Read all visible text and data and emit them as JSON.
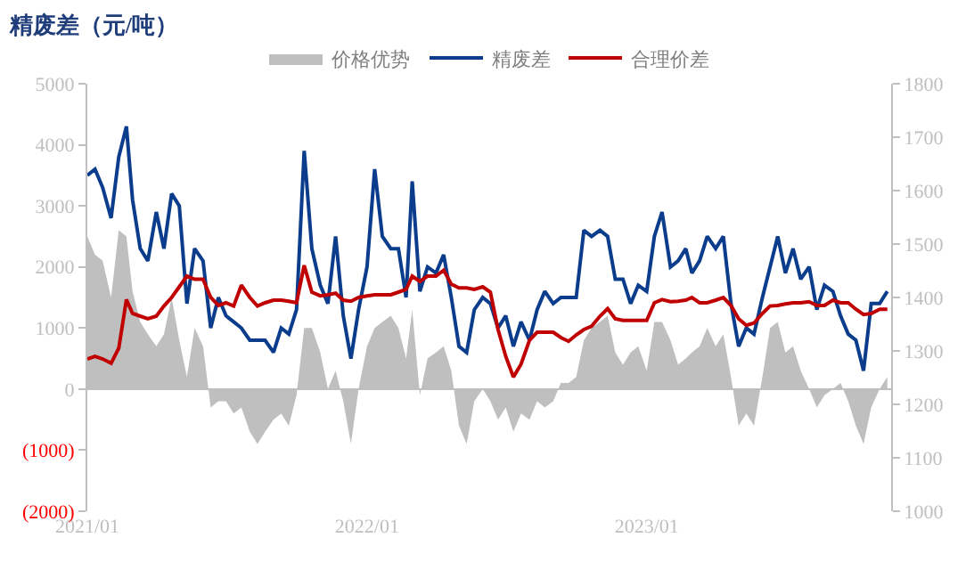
{
  "chart_data": {
    "type": "line",
    "title": "精废差（元/吨）",
    "x": [
      "2021-01-01",
      "2021-01-11",
      "2021-01-21",
      "2021-02-01",
      "2021-02-11",
      "2021-02-21",
      "2021-03-01",
      "2021-03-11",
      "2021-03-21",
      "2021-04-01",
      "2021-04-11",
      "2021-04-21",
      "2021-05-01",
      "2021-05-11",
      "2021-05-21",
      "2021-06-01",
      "2021-06-11",
      "2021-06-21",
      "2021-07-01",
      "2021-07-11",
      "2021-07-21",
      "2021-08-01",
      "2021-08-11",
      "2021-08-21",
      "2021-09-01",
      "2021-09-11",
      "2021-09-21",
      "2021-10-01",
      "2021-10-11",
      "2021-10-21",
      "2021-11-01",
      "2021-11-11",
      "2021-11-21",
      "2021-12-01",
      "2021-12-11",
      "2021-12-21",
      "2022-01-01",
      "2022-01-11",
      "2022-01-21",
      "2022-02-01",
      "2022-02-11",
      "2022-02-21",
      "2022-03-01",
      "2022-03-11",
      "2022-03-21",
      "2022-04-01",
      "2022-04-11",
      "2022-04-21",
      "2022-05-01",
      "2022-05-11",
      "2022-05-21",
      "2022-06-01",
      "2022-06-11",
      "2022-06-21",
      "2022-07-01",
      "2022-07-11",
      "2022-07-21",
      "2022-08-01",
      "2022-08-11",
      "2022-08-21",
      "2022-09-01",
      "2022-09-11",
      "2022-09-21",
      "2022-10-01",
      "2022-10-11",
      "2022-10-21",
      "2022-11-01",
      "2022-11-11",
      "2022-11-21",
      "2022-12-01",
      "2022-12-11",
      "2022-12-21",
      "2023-01-01",
      "2023-01-11",
      "2023-01-21",
      "2023-02-01",
      "2023-02-11",
      "2023-02-21",
      "2023-03-01",
      "2023-03-11",
      "2023-03-21",
      "2023-04-01",
      "2023-04-11",
      "2023-04-21",
      "2023-05-01",
      "2023-05-11",
      "2023-05-21",
      "2023-06-01",
      "2023-06-11",
      "2023-06-21",
      "2023-07-01",
      "2023-07-11",
      "2023-07-21",
      "2023-08-01",
      "2023-08-11",
      "2023-08-21",
      "2023-09-01",
      "2023-09-11",
      "2023-09-21",
      "2023-10-01",
      "2023-10-11",
      "2023-10-21",
      "2023-11-01",
      "2023-11-11"
    ],
    "series": [
      {
        "name": "价格优势",
        "type": "area",
        "color": "#bfbfbf",
        "values": [
          2500,
          2200,
          2100,
          1500,
          2600,
          2500,
          1600,
          1100,
          900,
          700,
          900,
          1500,
          800,
          200,
          1000,
          700,
          -300,
          -200,
          -200,
          -400,
          -300,
          -700,
          -900,
          -700,
          -500,
          -400,
          -600,
          -100,
          1000,
          1000,
          600,
          0,
          300,
          -200,
          -900,
          0,
          700,
          1000,
          1100,
          1200,
          1000,
          500,
          1300,
          -100,
          500,
          600,
          700,
          300,
          -600,
          -900,
          -200,
          0,
          -200,
          -500,
          -300,
          -700,
          -400,
          -500,
          -200,
          -300,
          -200,
          100,
          100,
          200,
          800,
          1000,
          1100,
          1200,
          600,
          400,
          600,
          700,
          300,
          1100,
          1100,
          800,
          400,
          500,
          600,
          700,
          1000,
          700,
          900,
          200,
          -600,
          -400,
          -600,
          200,
          1000,
          1100,
          600,
          700,
          300,
          0,
          -300,
          -100,
          0,
          100,
          -200,
          -600,
          -900,
          -300,
          0,
          200
        ]
      },
      {
        "name": "精废差",
        "color": "#0b3d8c",
        "values": [
          3500,
          3600,
          3300,
          2800,
          3800,
          4300,
          3100,
          2300,
          2100,
          2900,
          2300,
          3200,
          3000,
          1400,
          2300,
          2100,
          1000,
          1500,
          1200,
          1100,
          1000,
          800,
          800,
          800,
          600,
          1000,
          900,
          1300,
          3900,
          2300,
          1700,
          1400,
          2500,
          1200,
          500,
          1300,
          2000,
          3600,
          2500,
          2300,
          2300,
          1500,
          3400,
          1600,
          2000,
          1900,
          2200,
          1500,
          700,
          600,
          1300,
          1500,
          1400,
          1000,
          1200,
          700,
          1100,
          800,
          1300,
          1600,
          1400,
          1500,
          1500,
          1500,
          2600,
          2500,
          2600,
          2500,
          1800,
          1800,
          1400,
          1700,
          1600,
          2500,
          2900,
          2000,
          2100,
          2300,
          1900,
          2100,
          2500,
          2300,
          2500,
          1400,
          700,
          1000,
          900,
          1500,
          2000,
          2500,
          1900,
          2300,
          1800,
          2000,
          1300,
          1700,
          1600,
          1200,
          900,
          800,
          300,
          1400,
          1400,
          1600
        ]
      },
      {
        "name": "合理价差",
        "axis": "y2",
        "color": "#c00000",
        "values": [
          1285,
          1290,
          1285,
          1277,
          1305,
          1396,
          1370,
          1365,
          1360,
          1365,
          1384,
          1400,
          1420,
          1440,
          1434,
          1434,
          1400,
          1385,
          1390,
          1384,
          1423,
          1400,
          1384,
          1390,
          1395,
          1395,
          1393,
          1390,
          1460,
          1410,
          1403,
          1405,
          1408,
          1395,
          1393,
          1400,
          1403,
          1405,
          1405,
          1405,
          1410,
          1415,
          1440,
          1430,
          1440,
          1440,
          1451,
          1425,
          1418,
          1418,
          1415,
          1420,
          1410,
          1340,
          1290,
          1251,
          1275,
          1320,
          1335,
          1335,
          1335,
          1325,
          1318,
          1330,
          1340,
          1346,
          1365,
          1379,
          1360,
          1357,
          1357,
          1357,
          1357,
          1390,
          1396,
          1392,
          1393,
          1395,
          1400,
          1390,
          1390,
          1395,
          1400,
          1385,
          1360,
          1348,
          1352,
          1370,
          1384,
          1385,
          1388,
          1390,
          1390,
          1392,
          1385,
          1385,
          1395,
          1390,
          1390,
          1378,
          1368,
          1370,
          1378,
          1378
        ]
      }
    ],
    "xlim": [
      "2021-01-01",
      "2023-11-16"
    ],
    "xticks": [
      {
        "value": "2021-01-01",
        "label": "2021/01"
      },
      {
        "value": "2022-01-01",
        "label": "2022/01"
      },
      {
        "value": "2023-01-01",
        "label": "2023/01"
      }
    ],
    "ylim": [
      -2000,
      5000
    ],
    "yticks": [
      {
        "value": -2000,
        "label": "(2000)"
      },
      {
        "value": -1000,
        "label": "(1000)"
      },
      0,
      1000,
      2000,
      3000,
      4000,
      5000
    ],
    "y2lim": [
      1000,
      1800
    ],
    "y2ticks": [
      1000,
      1100,
      1200,
      1300,
      1400,
      1500,
      1600,
      1700,
      1800
    ],
    "legend": "top"
  }
}
